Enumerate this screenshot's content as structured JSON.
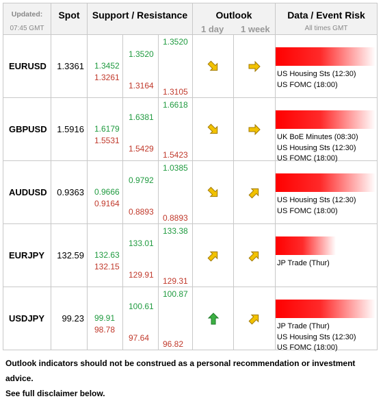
{
  "header": {
    "updated_label": "Updated:",
    "updated_time": "07:45 GMT",
    "spot": "Spot",
    "sr": "Support / Resistance",
    "outlook": "Outlook",
    "outlook_1d": "1 day",
    "outlook_1w": "1 week",
    "events": "Data / Event Risk",
    "events_sub": "All times GMT"
  },
  "colors": {
    "support_resistance_up": "#1f9a3f",
    "support_resistance_down": "#c0392b",
    "risk_bar": "#ff0000",
    "bullish_strong": "#3cb043",
    "arrow_fill": "#f2c200"
  },
  "rows": [
    {
      "pair": "EURUSD",
      "spot": "1.3361",
      "sr": {
        "c1_top": "1.3452",
        "c1_bot": "1.3261",
        "c2_top": "1.3520",
        "c2_bot": "1.3164",
        "c3_top": "1.3520",
        "c3_bot": "1.3105"
      },
      "outlook_1d": "down-right",
      "outlook_1w": "right",
      "risk_level": 1.0,
      "events": [
        "US Housing Sts (12:30)",
        "US FOMC (18:00)"
      ]
    },
    {
      "pair": "GBPUSD",
      "spot": "1.5916",
      "sr": {
        "c1_top": "1.6179",
        "c1_bot": "1.5531",
        "c2_top": "1.6381",
        "c2_bot": "1.5429",
        "c3_top": "1.6618",
        "c3_bot": "1.5423"
      },
      "outlook_1d": "down-right",
      "outlook_1w": "right",
      "risk_level": 1.0,
      "events": [
        "UK BoE Minutes (08:30)",
        "US Housing Sts (12:30)",
        "US FOMC (18:00)"
      ]
    },
    {
      "pair": "AUDUSD",
      "spot": "0.9363",
      "sr": {
        "c1_top": "0.9666",
        "c1_bot": "0.9164",
        "c2_top": "0.9792",
        "c2_bot": "0.8893",
        "c3_top": "1.0385",
        "c3_bot": "0.8893"
      },
      "outlook_1d": "down-right",
      "outlook_1w": "up-right",
      "risk_level": 1.0,
      "events": [
        "US Housing Sts (12:30)",
        "US FOMC (18:00)"
      ]
    },
    {
      "pair": "EURJPY",
      "spot": "132.59",
      "sr": {
        "c1_top": "132.63",
        "c1_bot": "132.15",
        "c2_top": "133.01",
        "c2_bot": "129.91",
        "c3_top": "133.38",
        "c3_bot": "129.31"
      },
      "outlook_1d": "up-right",
      "outlook_1w": "up-right",
      "risk_level": 0.6,
      "events": [
        "JP Trade (Thur)"
      ]
    },
    {
      "pair": "USDJPY",
      "spot": "99.23",
      "sr": {
        "c1_top": "99.91",
        "c1_bot": "98.78",
        "c2_top": "100.61",
        "c2_bot": "97.64",
        "c3_top": "100.87",
        "c3_bot": "96.82"
      },
      "outlook_1d": "up",
      "outlook_1w": "up-right",
      "risk_level": 1.0,
      "events": [
        "JP Trade (Thur)",
        "US Housing Sts (12:30)",
        "US FOMC (18:00)"
      ]
    }
  ],
  "footer": {
    "line1": "Outlook indicators should not be construed as a personal recommendation or investment advice.",
    "line2": "See full disclaimer below."
  }
}
